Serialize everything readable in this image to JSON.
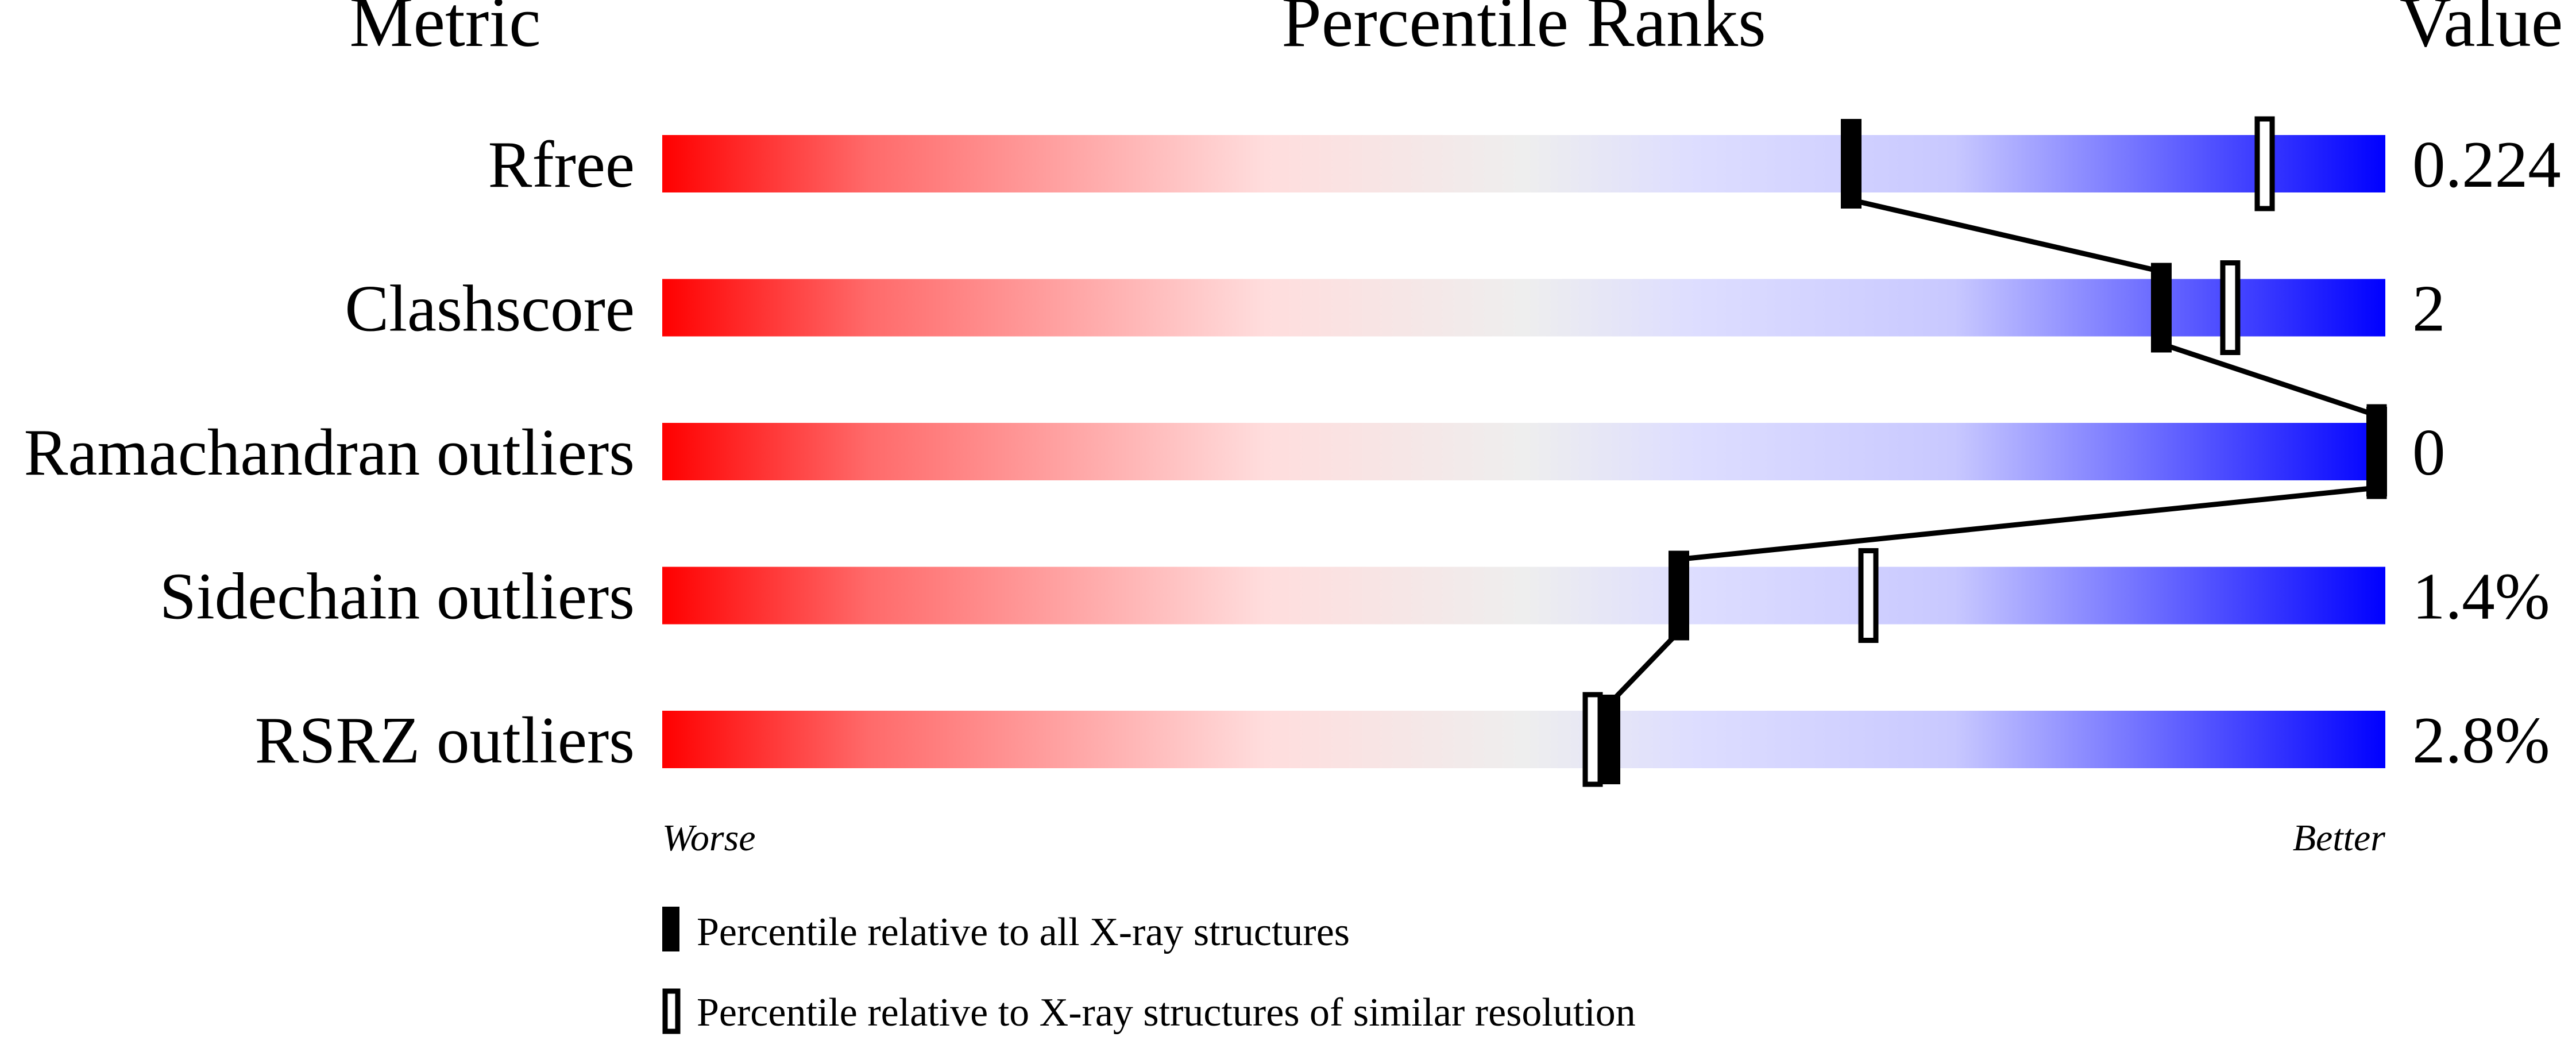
{
  "chart_data": {
    "type": "percentile-slider",
    "headers": {
      "metric": "Metric",
      "ranks": "Percentile Ranks",
      "value": "Value"
    },
    "xlim": [
      0,
      100
    ],
    "axis_labels": {
      "left": "Worse",
      "right": "Better"
    },
    "gradient_colors": [
      "#ff0000",
      "#ffdddd",
      "#eeeeee",
      "#ddddff",
      "#0000ff"
    ],
    "metrics": [
      {
        "name": "Rfree",
        "value": "0.224",
        "percentile_all": 69,
        "percentile_similar": 93
      },
      {
        "name": "Clashscore",
        "value": "2",
        "percentile_all": 87,
        "percentile_similar": 91
      },
      {
        "name": "Ramachandran outliers",
        "value": "0",
        "percentile_all": 100,
        "percentile_similar": 100
      },
      {
        "name": "Sidechain outliers",
        "value": "1.4%",
        "percentile_all": 59,
        "percentile_similar": 70
      },
      {
        "name": "RSRZ outliers",
        "value": "2.8%",
        "percentile_all": 55,
        "percentile_similar": 54
      }
    ],
    "legend": [
      {
        "marker": "filled",
        "label": "Percentile relative to all X-ray structures"
      },
      {
        "marker": "open",
        "label": "Percentile relative to X-ray structures of similar resolution"
      }
    ]
  }
}
